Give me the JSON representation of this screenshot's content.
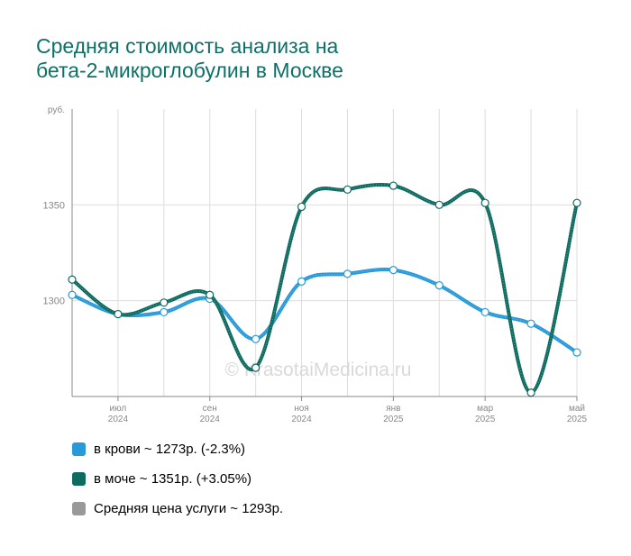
{
  "title_lines": [
    "Средняя стоимость анализа на",
    "бета-2-микроглобулин в Москве"
  ],
  "watermark": "© KrasotaiMedicina.ru",
  "legend": [
    {
      "label": "в крови ~ 1273р. (-2.3%)",
      "color": "#2899d9"
    },
    {
      "label": "в моче ~ 1351р. (+3.05%)",
      "color": "#0e6b60"
    },
    {
      "label": "Средняя цена услуги ~ 1293р.",
      "color": "#999999"
    }
  ],
  "chart_data": {
    "type": "line",
    "ylabel": "руб.",
    "ylim": [
      1250,
      1400
    ],
    "y_ticks": [
      1300,
      1350
    ],
    "x_tick_labels": [
      {
        "month": "июл",
        "year": "2024",
        "index": 1
      },
      {
        "month": "сен",
        "year": "2024",
        "index": 3
      },
      {
        "month": "ноя",
        "year": "2024",
        "index": 5
      },
      {
        "month": "янв",
        "year": "2025",
        "index": 7
      },
      {
        "month": "мар",
        "year": "2025",
        "index": 9
      },
      {
        "month": "май",
        "year": "2025",
        "index": 11
      }
    ],
    "x": [
      "2024-06",
      "2024-07",
      "2024-08",
      "2024-09",
      "2024-10",
      "2024-11",
      "2024-12",
      "2025-01",
      "2025-02",
      "2025-03",
      "2025-04",
      "2025-05"
    ],
    "grid": true,
    "series": [
      {
        "name": "в крови",
        "color": "#2899d9",
        "values": [
          1303,
          1293,
          1294,
          1301,
          1280,
          1310,
          1314,
          1316,
          1308,
          1294,
          1288,
          1273
        ]
      },
      {
        "name": "в моче",
        "color": "#0e6b60",
        "values": [
          1311,
          1293,
          1299,
          1303,
          1265,
          1349,
          1358,
          1360,
          1350,
          1351,
          1252,
          1351
        ]
      }
    ]
  }
}
